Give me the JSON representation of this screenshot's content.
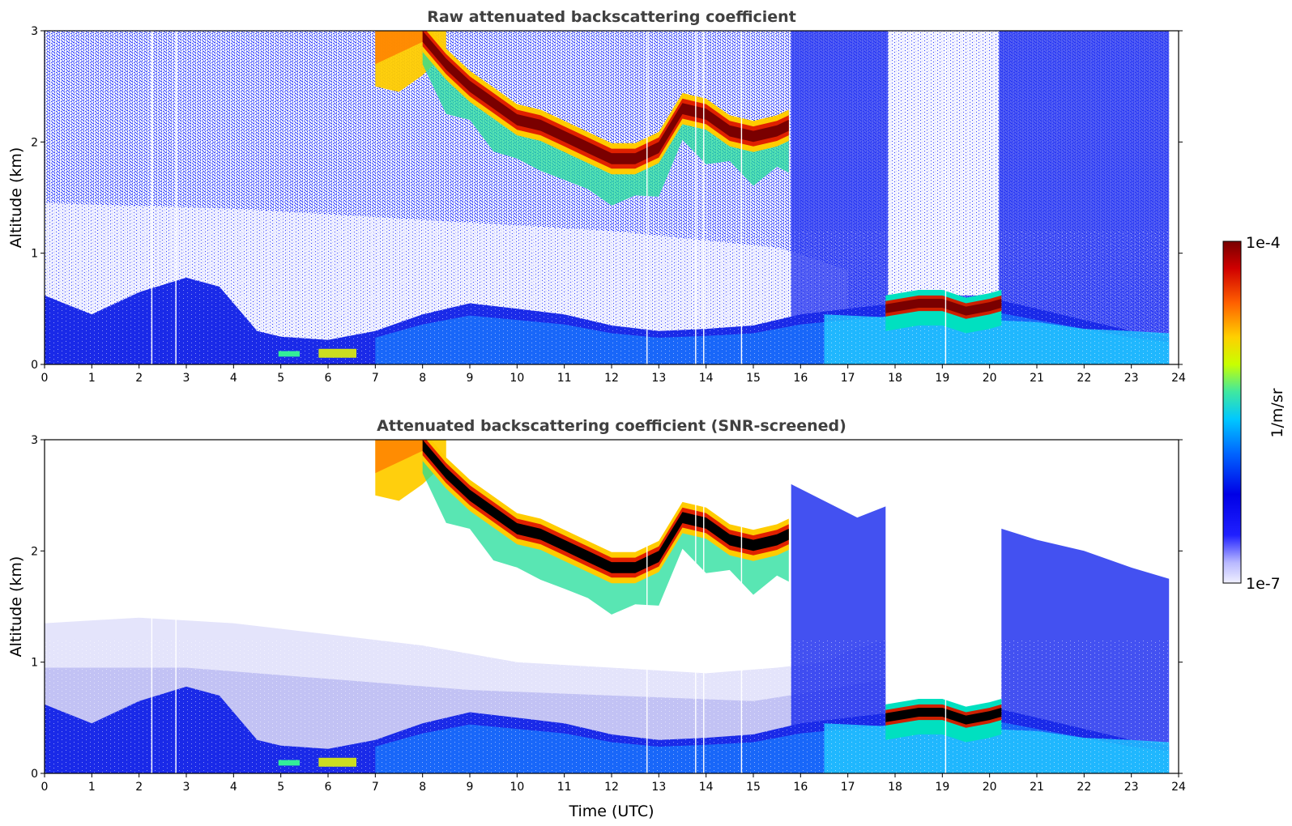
{
  "chart_data": [
    {
      "type": "heatmap",
      "title": "Raw attenuated backscattering coefficient",
      "xlabel": "",
      "ylabel": "Altitude (km)",
      "xlim": [
        0,
        24
      ],
      "ylim": [
        0,
        3
      ],
      "xticks": [
        "0",
        "1",
        "2",
        "3",
        "4",
        "5",
        "6",
        "7",
        "8",
        "9",
        "10",
        "11",
        "12",
        "13",
        "14",
        "15",
        "16",
        "17",
        "18",
        "19",
        "20",
        "21",
        "22",
        "23",
        "24"
      ],
      "yticks": [
        "0",
        "1",
        "2",
        "3"
      ],
      "scale": "log",
      "features": [
        {
          "kind": "boundary_layer_top",
          "times": [
            0,
            1,
            2,
            3,
            3.7,
            4.5,
            5,
            6,
            7,
            8,
            9,
            10,
            11,
            12,
            13,
            14,
            15,
            16,
            17,
            18,
            19,
            20,
            21,
            22,
            23,
            23.8
          ],
          "altitudes_km": [
            0.62,
            0.45,
            0.65,
            0.78,
            0.7,
            0.3,
            0.25,
            0.22,
            0.3,
            0.45,
            0.55,
            0.5,
            0.45,
            0.35,
            0.3,
            0.32,
            0.35,
            0.45,
            0.5,
            0.55,
            0.55,
            0.6,
            0.5,
            0.4,
            0.3,
            0.25
          ]
        },
        {
          "kind": "cirrus_layer",
          "times": [
            8,
            8.5,
            9,
            9.5,
            10,
            10.5,
            11,
            11.5,
            12,
            12.5,
            13,
            13.5,
            14,
            14.5,
            15,
            15.5,
            15.75
          ],
          "altitudes_km": [
            2.95,
            2.7,
            2.5,
            2.35,
            2.2,
            2.15,
            2.05,
            1.95,
            1.85,
            1.85,
            1.95,
            2.3,
            2.25,
            2.1,
            2.05,
            2.1,
            2.15
          ]
        },
        {
          "kind": "low_cloud",
          "times": [
            17.8,
            18.5,
            19,
            19.5,
            20,
            20.25
          ],
          "altitudes_km": [
            0.5,
            0.55,
            0.55,
            0.48,
            0.52,
            0.55
          ]
        }
      ]
    },
    {
      "type": "heatmap",
      "title": "Attenuated backscattering coefficient (SNR-screened)",
      "xlabel": "Time (UTC)",
      "ylabel": "Altitude (km)",
      "xlim": [
        0,
        24
      ],
      "ylim": [
        0,
        3
      ],
      "xticks": [
        "0",
        "1",
        "2",
        "3",
        "4",
        "5",
        "6",
        "7",
        "8",
        "9",
        "10",
        "11",
        "12",
        "13",
        "14",
        "15",
        "16",
        "17",
        "18",
        "19",
        "20",
        "21",
        "22",
        "23",
        "24"
      ],
      "yticks": [
        "0",
        "1",
        "2",
        "3"
      ],
      "scale": "log"
    }
  ],
  "colorbar": {
    "label": "1/m/sr",
    "max_label": "1e-4",
    "min_label": "1e-7",
    "range": [
      1e-07,
      0.0001
    ],
    "colormap": [
      "#f0f0ff",
      "#b8b8ff",
      "#2020ff",
      "#0000e6",
      "#0066ff",
      "#00c8ff",
      "#40e8a0",
      "#c8ff00",
      "#ffd000",
      "#ff6000",
      "#d00000",
      "#780000"
    ]
  }
}
